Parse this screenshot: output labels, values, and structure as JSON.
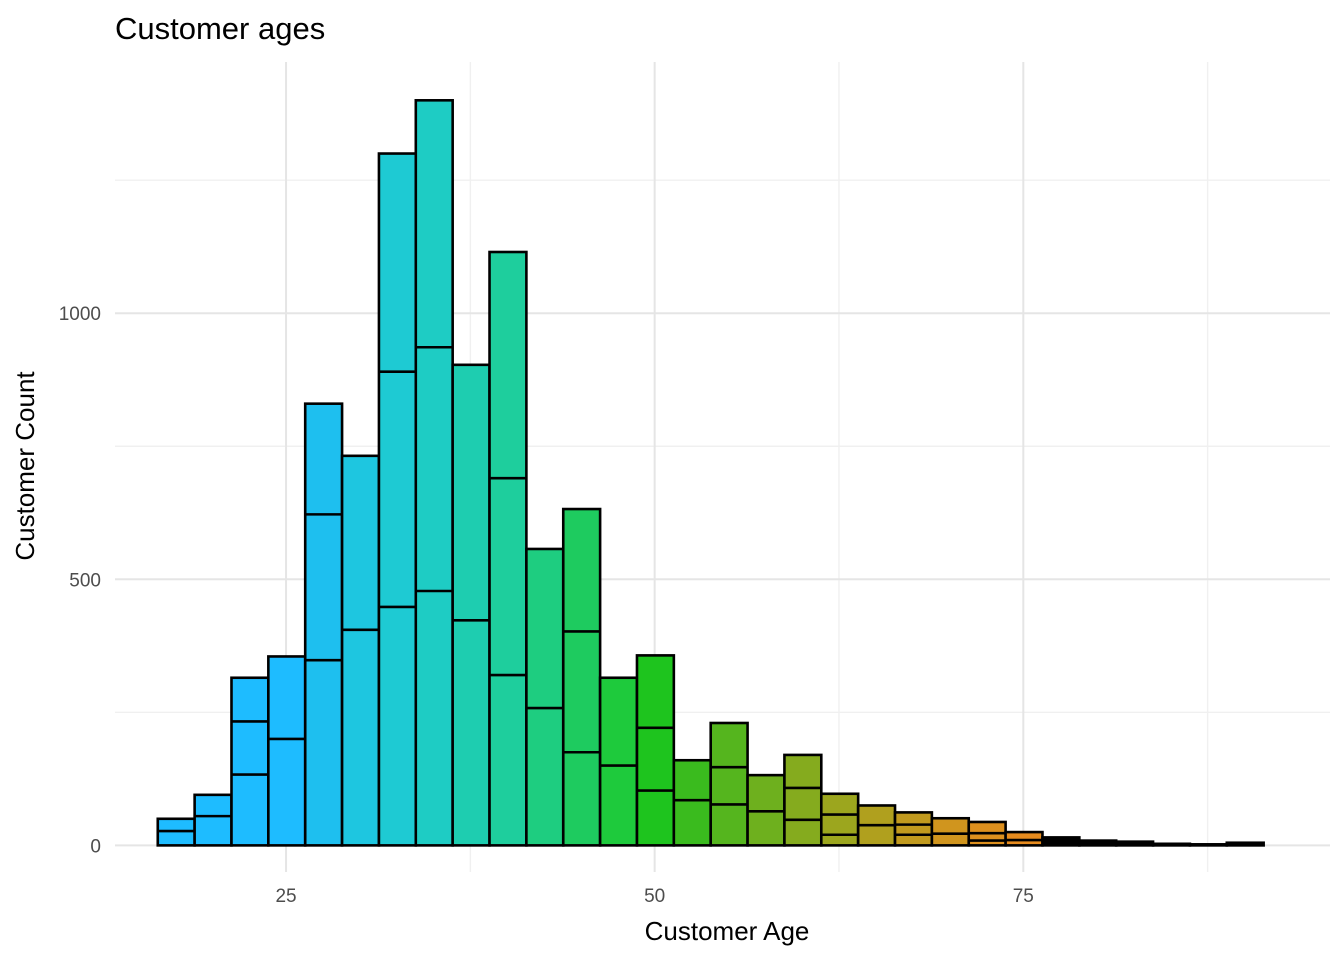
{
  "chart_data": {
    "type": "bar",
    "title": "Customer ages",
    "xlabel": "Customer Age",
    "ylabel": "Customer Count",
    "x_ticks": [
      25,
      50,
      75
    ],
    "y_ticks": [
      0,
      500,
      1000
    ],
    "xlim": [
      13.4,
      95.8
    ],
    "ylim": [
      -50,
      1472
    ],
    "grid": true,
    "legend": "none",
    "bins": [
      {
        "x0": 16.3,
        "x1": 18.8,
        "total": 50,
        "stack": [
          27,
          23
        ],
        "color": "#1ebcff"
      },
      {
        "x0": 18.8,
        "x1": 21.3,
        "total": 95,
        "stack": [
          55,
          40
        ],
        "color": "#1ebcff"
      },
      {
        "x0": 21.3,
        "x1": 23.8,
        "total": 315,
        "stack": [
          133,
          100,
          82
        ],
        "color": "#1ebcff"
      },
      {
        "x0": 23.8,
        "x1": 26.3,
        "total": 355,
        "stack": [
          200,
          155
        ],
        "color": "#1ebcff"
      },
      {
        "x0": 26.3,
        "x1": 28.8,
        "total": 830,
        "stack": [
          348,
          274,
          208
        ],
        "color": "#1ebfef"
      },
      {
        "x0": 28.8,
        "x1": 31.3,
        "total": 732,
        "stack": [
          405,
          327
        ],
        "color": "#1ec6e0"
      },
      {
        "x0": 31.3,
        "x1": 33.8,
        "total": 1300,
        "stack": [
          448,
          442,
          410
        ],
        "color": "#1ecad3"
      },
      {
        "x0": 33.8,
        "x1": 36.3,
        "total": 1400,
        "stack": [
          478,
          458,
          464
        ],
        "color": "#1eccc4"
      },
      {
        "x0": 36.3,
        "x1": 38.8,
        "total": 903,
        "stack": [
          423,
          480
        ],
        "color": "#1ecdb0"
      },
      {
        "x0": 38.8,
        "x1": 41.3,
        "total": 1115,
        "stack": [
          320,
          370,
          425
        ],
        "color": "#1ece9d"
      },
      {
        "x0": 41.3,
        "x1": 43.8,
        "total": 557,
        "stack": [
          258,
          299
        ],
        "color": "#1ecd80"
      },
      {
        "x0": 43.8,
        "x1": 46.3,
        "total": 632,
        "stack": [
          175,
          227,
          230
        ],
        "color": "#1ecb5f"
      },
      {
        "x0": 46.3,
        "x1": 48.8,
        "total": 315,
        "stack": [
          150,
          165
        ],
        "color": "#1eca3c"
      },
      {
        "x0": 48.8,
        "x1": 51.3,
        "total": 357,
        "stack": [
          103,
          118,
          136
        ],
        "color": "#1ec41e"
      },
      {
        "x0": 51.3,
        "x1": 53.8,
        "total": 160,
        "stack": [
          85,
          75
        ],
        "color": "#3abb1e"
      },
      {
        "x0": 53.8,
        "x1": 56.3,
        "total": 230,
        "stack": [
          77,
          70,
          83
        ],
        "color": "#55b51e"
      },
      {
        "x0": 56.3,
        "x1": 58.8,
        "total": 132,
        "stack": [
          64,
          68
        ],
        "color": "#6eb01e"
      },
      {
        "x0": 58.8,
        "x1": 61.3,
        "total": 170,
        "stack": [
          48,
          60,
          62
        ],
        "color": "#85ab1e"
      },
      {
        "x0": 61.3,
        "x1": 63.8,
        "total": 97,
        "stack": [
          20,
          38,
          39
        ],
        "color": "#9ca61e"
      },
      {
        "x0": 63.8,
        "x1": 66.3,
        "total": 75,
        "stack": [
          38,
          37
        ],
        "color": "#b0a01e"
      },
      {
        "x0": 66.3,
        "x1": 68.8,
        "total": 62,
        "stack": [
          20,
          19,
          23
        ],
        "color": "#c19a1e"
      },
      {
        "x0": 68.8,
        "x1": 71.3,
        "total": 51,
        "stack": [
          22,
          29
        ],
        "color": "#d0951e"
      },
      {
        "x0": 71.3,
        "x1": 73.8,
        "total": 44,
        "stack": [
          9,
          14,
          21
        ],
        "color": "#dd901e"
      },
      {
        "x0": 73.8,
        "x1": 76.3,
        "total": 25,
        "stack": [
          10,
          15
        ],
        "color": "#e68b1e"
      },
      {
        "x0": 76.3,
        "x1": 78.8,
        "total": 15,
        "stack": [
          15
        ],
        "color": "#000000"
      },
      {
        "x0": 78.8,
        "x1": 81.3,
        "total": 9,
        "stack": [
          9
        ],
        "color": "#000000"
      },
      {
        "x0": 81.3,
        "x1": 83.8,
        "total": 7,
        "stack": [
          7
        ],
        "color": "#000000"
      },
      {
        "x0": 83.8,
        "x1": 86.3,
        "total": 3,
        "stack": [
          3
        ],
        "color": "#000000"
      },
      {
        "x0": 86.3,
        "x1": 88.8,
        "total": 2,
        "stack": [
          2
        ],
        "color": "#000000"
      },
      {
        "x0": 88.8,
        "x1": 91.3,
        "total": 5,
        "stack": [
          5
        ],
        "color": "#000000"
      }
    ]
  }
}
